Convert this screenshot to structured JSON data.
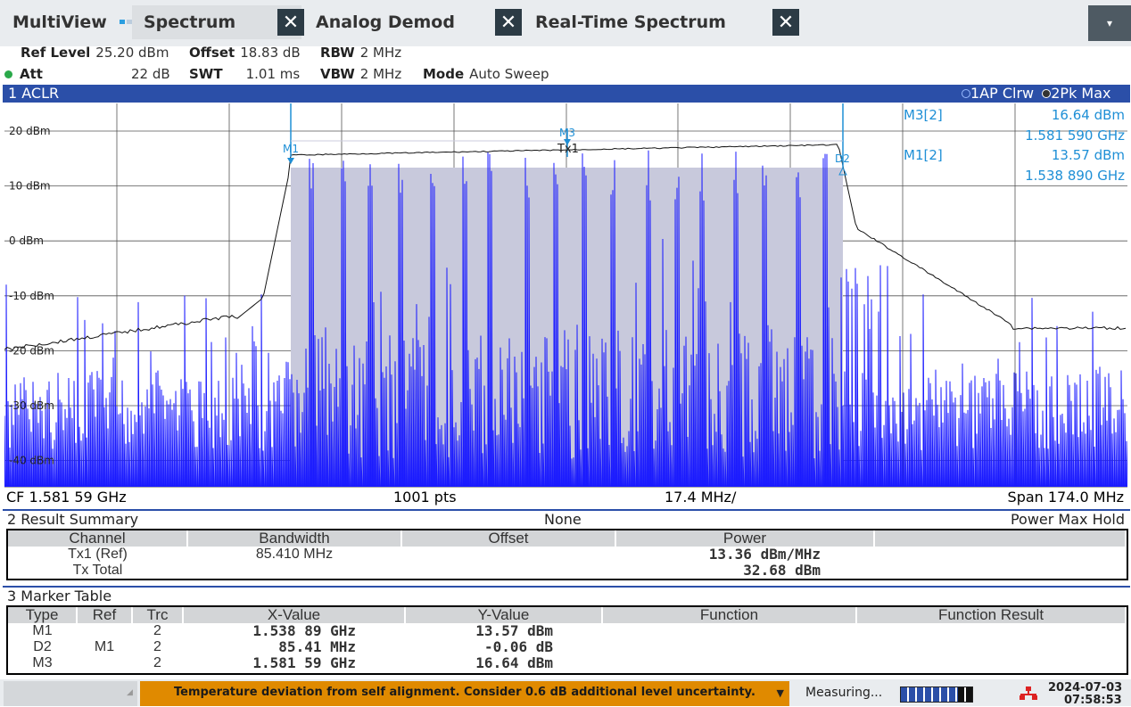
{
  "tabs": {
    "multiview": "MultiView",
    "spectrum": "Spectrum",
    "analog_demod": "Analog Demod",
    "realtime": "Real-Time Spectrum",
    "close_glyph": "✕",
    "dropdown_glyph": "▾"
  },
  "settings": {
    "ref_level_label": "Ref Level",
    "ref_level_value": "25.20 dBm",
    "offset_label": "Offset",
    "offset_value": "18.83 dB",
    "rbw_label": "RBW",
    "rbw_value": "2 MHz",
    "att_label": "Att",
    "att_value": "22 dB",
    "swt_label": "SWT",
    "swt_value": "1.01 ms",
    "vbw_label": "VBW",
    "vbw_value": "2 MHz",
    "mode_label": "Mode",
    "mode_value": "Auto Sweep"
  },
  "aclr_window": {
    "title": "1 ACLR",
    "trace1": "1AP Clrw",
    "trace2": "2Pk Max"
  },
  "plot": {
    "ylabels": [
      "20 dBm",
      "10 dBm",
      "0 dBm",
      "-10 dBm",
      "-20 dBm",
      "-30 dBm",
      "-40 dBm"
    ],
    "marker_labels": {
      "m1": "M1",
      "m3": "M3",
      "d2": "D2",
      "tx1": "Tx1"
    },
    "marker_readout": [
      {
        "name": "M3[2]",
        "value": "16.64 dBm",
        "freq": "1.581 590 GHz"
      },
      {
        "name": "M1[2]",
        "value": "13.57 dBm",
        "freq": "1.538 890 GHz"
      }
    ],
    "footer": {
      "cf": "CF 1.581 59 GHz",
      "pts": "1001 pts",
      "div": "17.4 MHz/",
      "span": "Span 174.0 MHz"
    }
  },
  "result_summary": {
    "title": "2 Result Summary",
    "center": "None",
    "right": "Power Max Hold",
    "headers": [
      "Channel",
      "Bandwidth",
      "Offset",
      "Power"
    ],
    "rows": [
      {
        "channel": "Tx1 (Ref)",
        "bandwidth": "85.410 MHz",
        "offset": "",
        "power": "13.36 dBm/MHz"
      },
      {
        "channel": "Tx Total",
        "bandwidth": "",
        "offset": "",
        "power": "32.68 dBm"
      }
    ]
  },
  "marker_table": {
    "title": "3 Marker Table",
    "headers": [
      "Type",
      "Ref",
      "Trc",
      "X-Value",
      "Y-Value",
      "Function",
      "Function Result"
    ],
    "rows": [
      {
        "type": "M1",
        "ref": "",
        "trc": "2",
        "x": "1.538 89 GHz",
        "y": "13.57 dBm"
      },
      {
        "type": "D2",
        "ref": "M1",
        "trc": "2",
        "x": "85.41 MHz",
        "y": "-0.06 dB"
      },
      {
        "type": "M3",
        "ref": "",
        "trc": "2",
        "x": "1.581 59 GHz",
        "y": "16.64 dBm"
      }
    ]
  },
  "status": {
    "warning": "Temperature deviation from self alignment. Consider 0.6 dB additional level uncertainty.",
    "measuring": "Measuring...",
    "date": "2024-07-03",
    "time": "07:58:53"
  },
  "colors": {
    "trace_blue": "#1a1aff",
    "marker_cyan": "#1e8fd6",
    "window_bar": "#2b4fa8",
    "warning_bg": "#e08a00",
    "channel_fill": "#c8c9dc"
  }
}
